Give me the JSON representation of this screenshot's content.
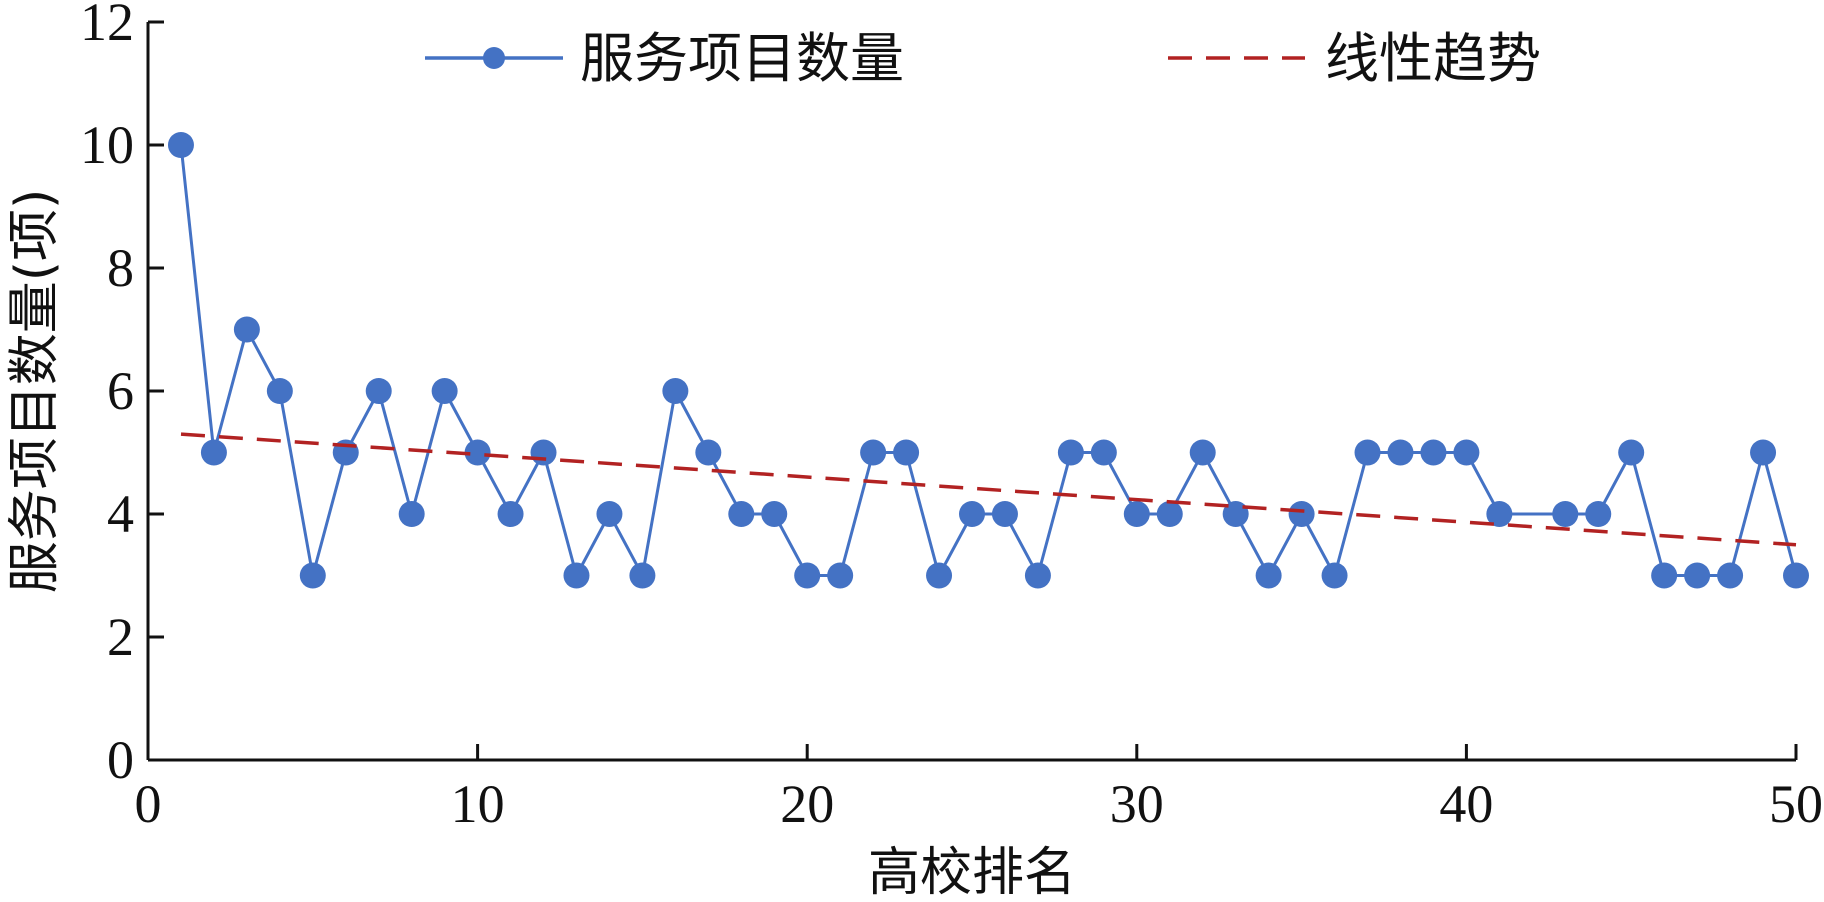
{
  "chart_data": {
    "type": "line",
    "title": "",
    "xlabel": "高校排名",
    "ylabel": "服务项目数量(项)",
    "xlim": [
      0,
      50
    ],
    "ylim": [
      0,
      12
    ],
    "xticks": [
      "0",
      "10",
      "20",
      "30",
      "40",
      "50"
    ],
    "yticks": [
      "0",
      "2",
      "4",
      "6",
      "8",
      "10",
      "12"
    ],
    "grid": false,
    "legend_position": "top",
    "series": [
      {
        "name": "服务项目数量",
        "color": "#4472C4",
        "style": "line-with-markers",
        "x": [
          1,
          2,
          3,
          4,
          5,
          6,
          7,
          8,
          9,
          10,
          11,
          12,
          13,
          14,
          15,
          16,
          17,
          18,
          19,
          20,
          21,
          22,
          23,
          24,
          25,
          26,
          27,
          28,
          29,
          30,
          31,
          32,
          33,
          34,
          35,
          36,
          37,
          38,
          39,
          40,
          41,
          43,
          44,
          45,
          46,
          47,
          48,
          49,
          50
        ],
        "y": [
          10,
          5,
          7,
          6,
          3,
          5,
          6,
          4,
          6,
          5,
          4,
          5,
          3,
          4,
          3,
          6,
          5,
          4,
          4,
          3,
          3,
          5,
          5,
          3,
          4,
          4,
          3,
          5,
          5,
          4,
          4,
          5,
          4,
          3,
          4,
          3,
          5,
          5,
          5,
          5,
          4,
          4,
          4,
          5,
          3,
          3,
          3,
          5,
          3
        ]
      },
      {
        "name": "线性趋势",
        "color": "#B22222",
        "style": "dashed-line",
        "x": [
          1,
          50
        ],
        "y": [
          5.3,
          3.5
        ]
      }
    ]
  }
}
